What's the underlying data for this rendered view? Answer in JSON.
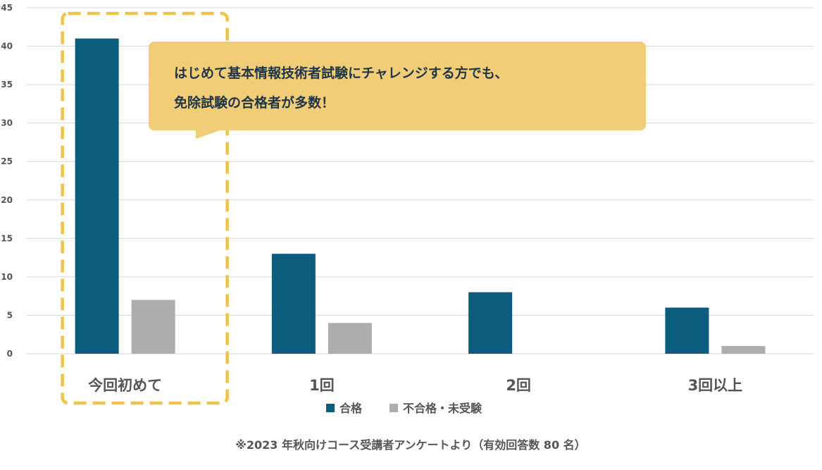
{
  "chart_data": {
    "type": "bar",
    "categories": [
      "今回初めて",
      "1回",
      "2回",
      "3回以上"
    ],
    "series": [
      {
        "name": "合格",
        "values": [
          41,
          13,
          8,
          6
        ],
        "color": "#0b5c7d"
      },
      {
        "name": "不合格・未受験",
        "values": [
          7,
          4,
          0,
          1
        ],
        "color": "#adadad"
      }
    ],
    "ylim": [
      0,
      45
    ],
    "yticks": [
      0,
      5,
      10,
      15,
      20,
      25,
      30,
      35,
      40,
      45
    ],
    "grid": true,
    "legend": "bottom",
    "highlight_category": "今回初めて",
    "highlight_color": "#f0c24e",
    "annotation": {
      "lines": [
        "はじめて基本情報技術者試験にチャレンジする方でも、",
        "免除試験の合格者が多数！"
      ],
      "background": "#f2cd78"
    },
    "footnote": "※2023 年秋向けコース受講者アンケートより（有効回答数 80 名）"
  }
}
